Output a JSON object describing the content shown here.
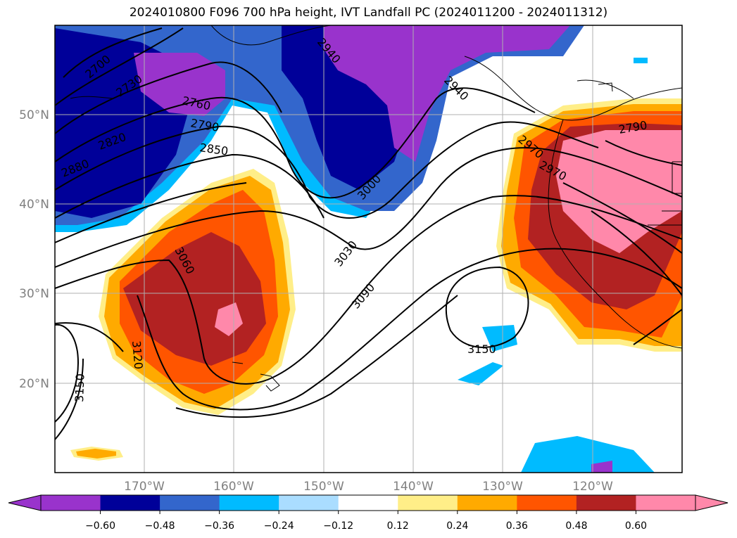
{
  "title": "2024010800 F096 700 hPa height, IVT Landfall PC (2024011200 - 2024011312)",
  "map": {
    "lat_labels": [
      "50°N",
      "40°N",
      "30°N",
      "20°N"
    ],
    "lon_labels": [
      "170°W",
      "160°W",
      "150°W",
      "140°W",
      "130°W",
      "120°W"
    ],
    "height_contour_labels": [
      "2700",
      "2730",
      "2760",
      "2790",
      "2820",
      "2850",
      "2880",
      "2940",
      "2940",
      "2970",
      "2970",
      "2790",
      "3000",
      "3030",
      "3060",
      "3090",
      "3120",
      "3150",
      "3150"
    ]
  },
  "colorbar": {
    "ticks": [
      "−0.60",
      "−0.48",
      "−0.36",
      "−0.24",
      "−0.12",
      "0.12",
      "0.24",
      "0.36",
      "0.48",
      "0.60"
    ],
    "colors": [
      "#9933cc",
      "#000099",
      "#3366cc",
      "#00bbff",
      "#aaddff",
      "#ffffff",
      "#ffee88",
      "#ffaa00",
      "#ff5500",
      "#b22222",
      "#ff88aa"
    ]
  }
}
